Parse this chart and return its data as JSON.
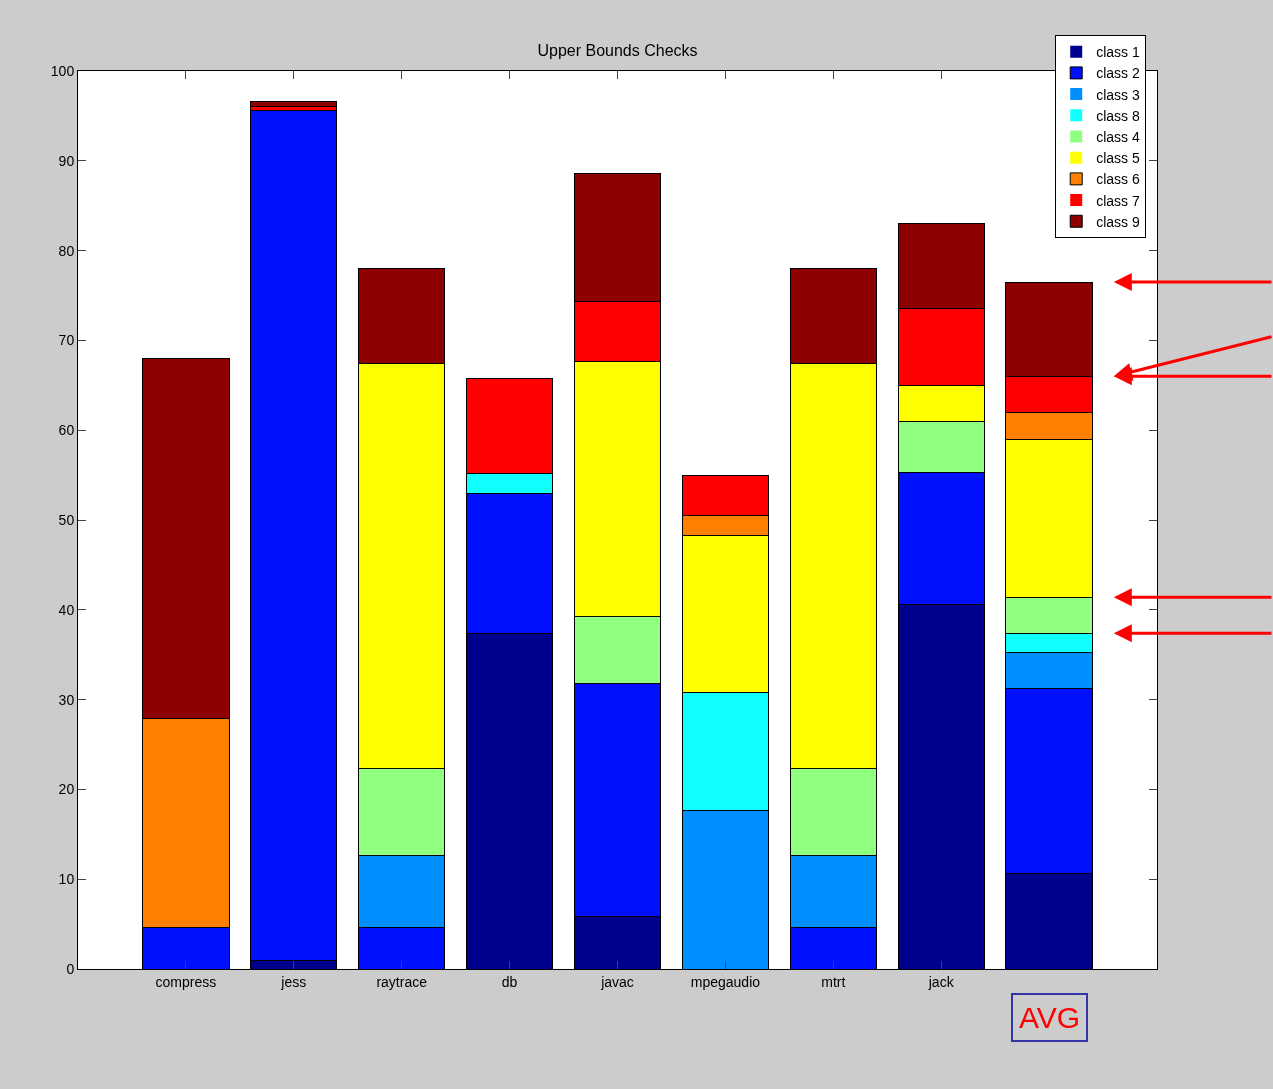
{
  "chart_data": {
    "type": "bar",
    "title": "Upper Bounds Checks",
    "stacked": true,
    "categories": [
      "compress",
      "jess",
      "raytrace",
      "db",
      "javac",
      "mpegaudio",
      "mtrt",
      "jack",
      null
    ],
    "series": [
      {
        "name": "class 1",
        "color": "#00008f",
        "values": [
          0,
          1.0,
          0,
          37.4,
          5.8,
          0,
          0,
          40.6,
          10.6
        ]
      },
      {
        "name": "class 2",
        "color": "#0010ff",
        "values": [
          4.6,
          94.6,
          4.6,
          15.6,
          26.0,
          0,
          4.6,
          14.7,
          20.6
        ]
      },
      {
        "name": "class 3",
        "color": "#008fff",
        "values": [
          0,
          0,
          8.0,
          0,
          0,
          17.6,
          8.0,
          0,
          4.1
        ]
      },
      {
        "name": "class 8",
        "color": "#10ffff",
        "values": [
          0,
          0,
          0,
          2.2,
          0,
          13.2,
          0,
          0,
          2.1
        ]
      },
      {
        "name": "class 4",
        "color": "#90ff80",
        "values": [
          0,
          0,
          9.7,
          0,
          7.4,
          0,
          9.7,
          5.7,
          4.0
        ]
      },
      {
        "name": "class 5",
        "color": "#ffff00",
        "values": [
          0,
          0,
          45.1,
          0,
          28.4,
          17.5,
          45.1,
          4.0,
          17.6
        ]
      },
      {
        "name": "class 6",
        "color": "#ff8000",
        "values": [
          23.3,
          0,
          0,
          0,
          0,
          2.2,
          0,
          0,
          3.0
        ]
      },
      {
        "name": "class 7",
        "color": "#ff0000",
        "values": [
          0,
          0.5,
          0,
          10.6,
          6.7,
          4.5,
          0,
          8.6,
          4.0
        ]
      },
      {
        "name": "class 9",
        "color": "#8f0000",
        "values": [
          40.1,
          0.5,
          10.6,
          0,
          14.3,
          0,
          10.6,
          9.4,
          10.5
        ]
      }
    ],
    "ylim": [
      0,
      100
    ],
    "yticks": [
      0,
      10,
      20,
      30,
      40,
      50,
      60,
      70,
      80,
      90,
      100
    ],
    "legend": "top right",
    "annotations": [
      "AVG"
    ]
  }
}
